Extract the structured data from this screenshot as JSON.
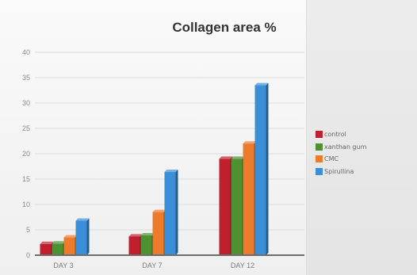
{
  "chart_data": {
    "type": "bar",
    "title": "Collagen area %",
    "categories": [
      "DAY 3",
      "DAY 7",
      "DAY 12"
    ],
    "series": [
      {
        "name": "control",
        "color": "#c0202e",
        "values": [
          2.2,
          3.7,
          19.0
        ]
      },
      {
        "name": "xanthan gum",
        "color": "#4d9132",
        "values": [
          2.3,
          3.9,
          19.0
        ]
      },
      {
        "name": "CMC",
        "color": "#ec7b2c",
        "values": [
          3.5,
          8.5,
          22.0
        ]
      },
      {
        "name": "Spirullina",
        "color": "#3a8fd6",
        "values": [
          6.8,
          16.4,
          33.5
        ]
      }
    ],
    "ylim": [
      0,
      40
    ],
    "yticks": [
      0,
      5,
      10,
      15,
      20,
      25,
      30,
      35,
      40
    ],
    "grid": true,
    "legend_position": "right",
    "style": "3d-columns"
  }
}
